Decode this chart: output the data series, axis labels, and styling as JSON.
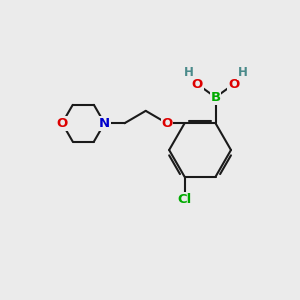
{
  "bg_color": "#ebebeb",
  "bond_color": "#1a1a1a",
  "bond_lw": 1.5,
  "atom_colors": {
    "B": "#00aa00",
    "O": "#dd0000",
    "N": "#0000cc",
    "Cl": "#00aa00",
    "H": "#4a8a8a"
  },
  "font_size": 9.5,
  "font_size_H": 8.5,
  "font_size_Cl": 9.5
}
